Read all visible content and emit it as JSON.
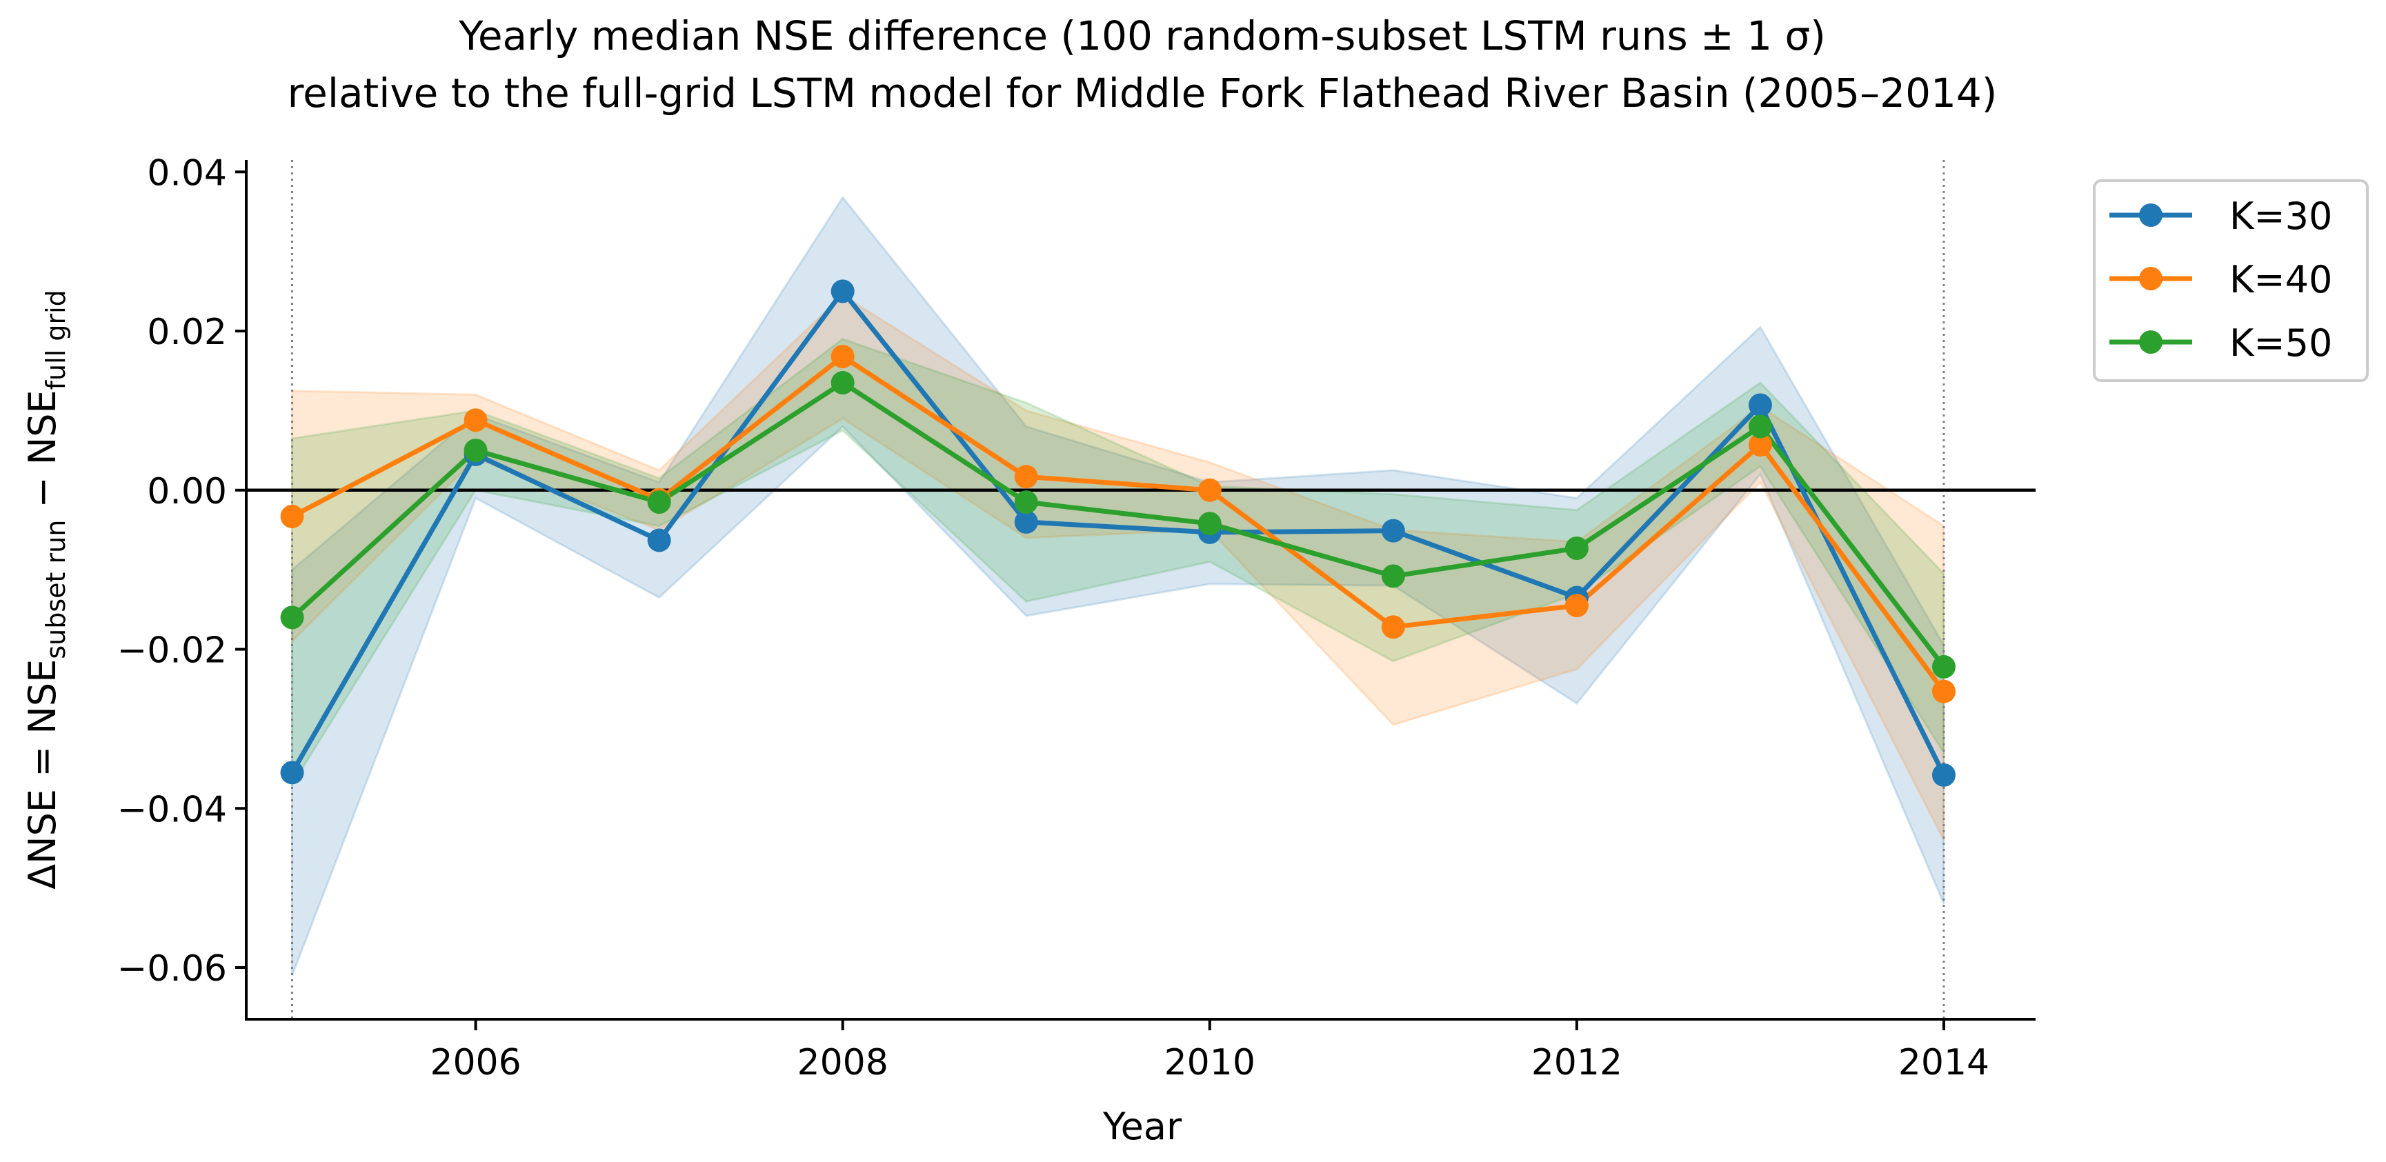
{
  "chart_data": {
    "type": "line",
    "title_line1": "Yearly median NSE difference (100 random-subset LSTM runs ± 1 σ)",
    "title_line2": "relative to the full-grid LSTM model for Middle Fork Flathead River Basin (2005–2014)",
    "xlabel": "Year",
    "ylabel": {
      "prefix": "ΔNSE  =  NSE",
      "sub1": "subset run",
      "mid": "  −  NSE",
      "sub2": "full grid"
    },
    "xlim": [
      2004.75,
      2014.5
    ],
    "ylim": [
      -0.0665,
      0.0415
    ],
    "x_ticks": [
      2006,
      2008,
      2010,
      2012,
      2014
    ],
    "x_tick_labels": [
      "2006",
      "2008",
      "2010",
      "2012",
      "2014"
    ],
    "y_ticks": [
      -0.06,
      -0.04,
      -0.02,
      0.0,
      0.02,
      0.04
    ],
    "y_tick_labels": [
      "−0.06",
      "−0.04",
      "−0.02",
      "0.00",
      "0.02",
      "0.04"
    ],
    "reference_line_y": 0,
    "vertical_dotted_lines": [
      2005,
      2014
    ],
    "legend_position": "upper-right, outside plot",
    "x": [
      2005,
      2006,
      2007,
      2008,
      2009,
      2010,
      2011,
      2012,
      2013,
      2014
    ],
    "series": [
      {
        "name": "K=30",
        "color": "#1f77b4",
        "values": [
          -0.0355,
          0.0045,
          -0.0063,
          0.025,
          -0.004,
          -0.0053,
          -0.0051,
          -0.0135,
          0.0107,
          -0.0358
        ],
        "band_lower": [
          -0.061,
          -0.001,
          -0.0135,
          0.008,
          -0.0158,
          -0.0118,
          -0.012,
          -0.0268,
          0.002,
          -0.052
        ],
        "band_upper": [
          -0.01,
          0.0095,
          0.001,
          0.0368,
          0.008,
          0.001,
          0.0025,
          -0.001,
          0.0205,
          -0.0195
        ]
      },
      {
        "name": "K=40",
        "color": "#ff7f0e",
        "values": [
          -0.0033,
          0.0088,
          -0.0012,
          0.0168,
          0.0017,
          0.0,
          -0.0172,
          -0.0145,
          0.0057,
          -0.0253
        ],
        "band_lower": [
          -0.019,
          0.004,
          -0.005,
          0.009,
          -0.006,
          -0.005,
          -0.0295,
          -0.0225,
          0.001,
          -0.044
        ],
        "band_upper": [
          0.0125,
          0.012,
          0.0025,
          0.0245,
          0.01,
          0.0035,
          -0.005,
          -0.0065,
          0.0105,
          -0.0045
        ]
      },
      {
        "name": "K=50",
        "color": "#2ca02c",
        "values": [
          -0.016,
          0.005,
          -0.0015,
          0.0135,
          -0.0015,
          -0.0042,
          -0.0108,
          -0.0073,
          0.008,
          -0.0222
        ],
        "band_lower": [
          -0.037,
          0.0,
          -0.0045,
          0.0075,
          -0.014,
          -0.009,
          -0.0215,
          -0.013,
          0.003,
          -0.033
        ],
        "band_upper": [
          0.0065,
          0.01,
          0.0015,
          0.019,
          0.011,
          0.0005,
          -0.0005,
          -0.0025,
          0.0135,
          -0.0105
        ]
      }
    ]
  }
}
